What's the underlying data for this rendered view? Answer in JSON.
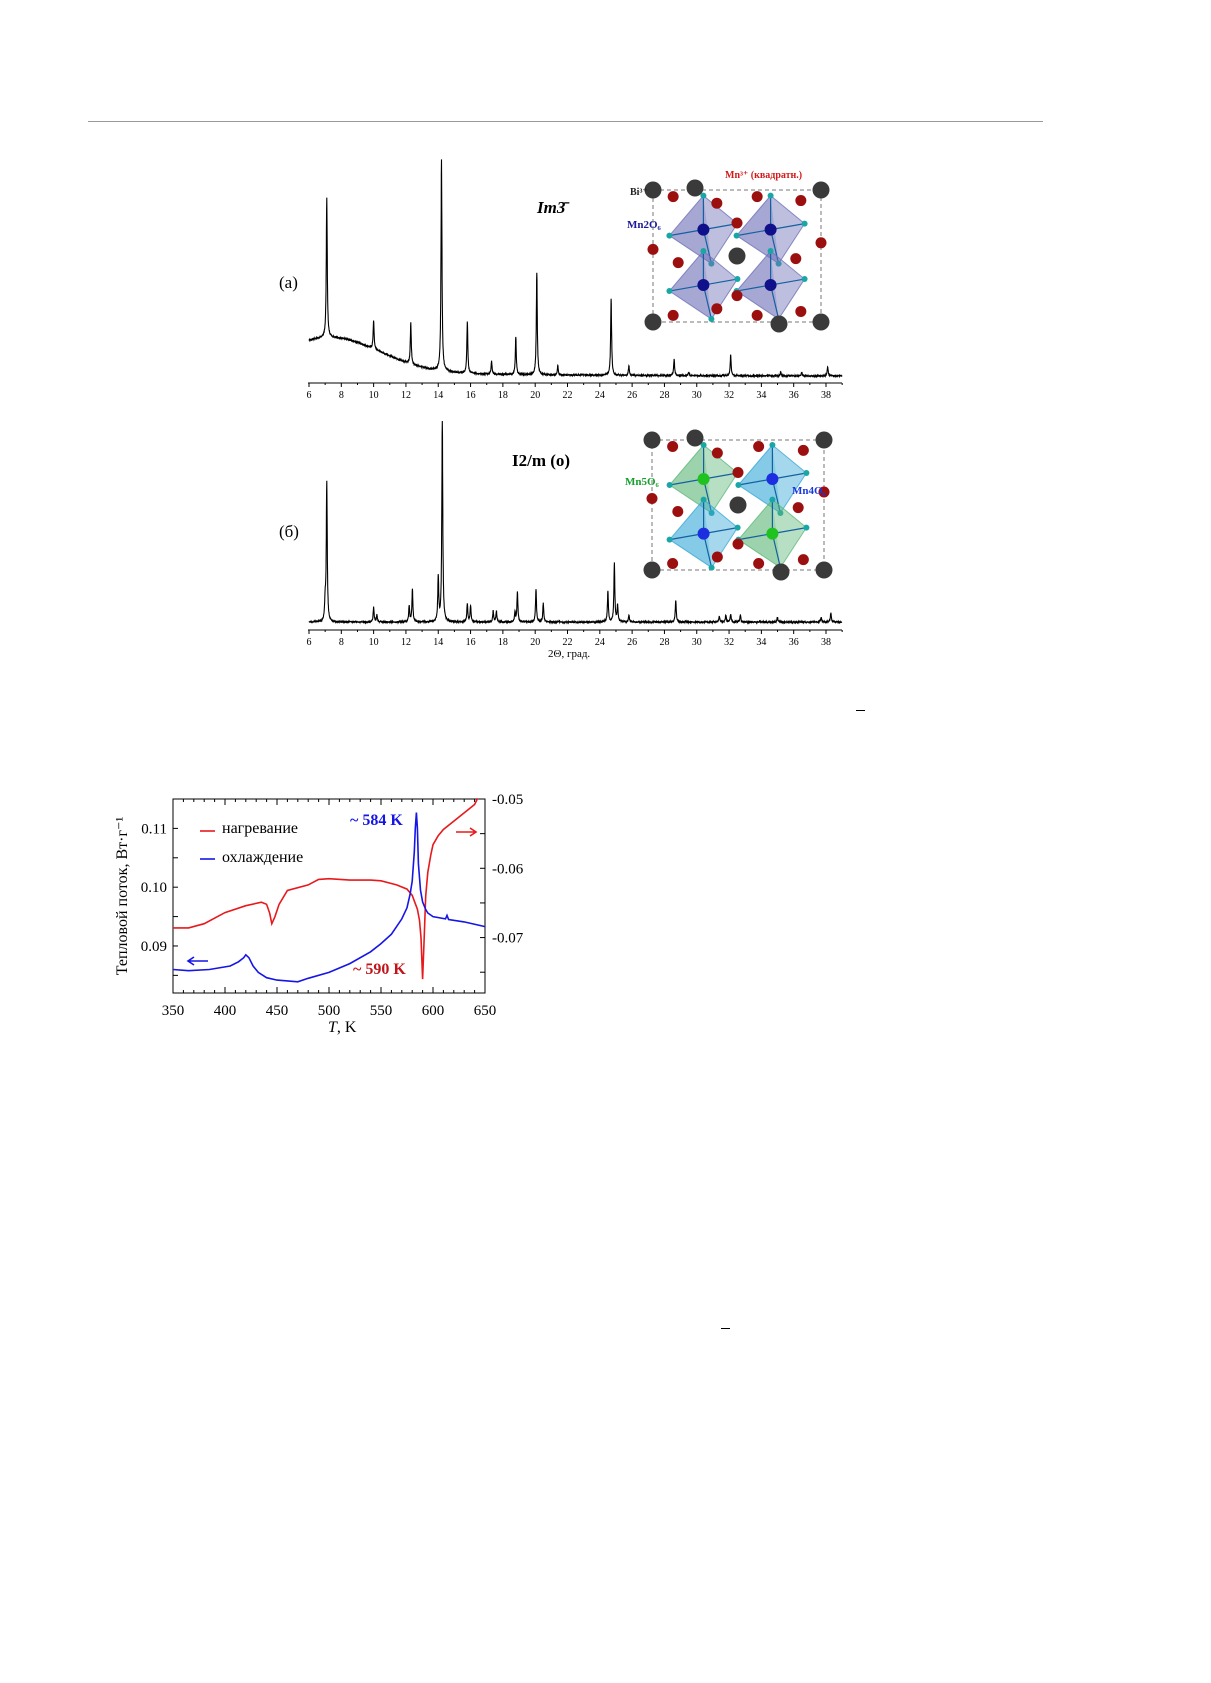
{
  "figure_xrd": {
    "panels": [
      {
        "label": "(a)",
        "space_group": "Im3̄",
        "sg_italic": "Im",
        "sg_rest": "3̄",
        "structure_labels": {
          "bi": "Bi³⁺",
          "mn_square": "Mn³⁺ (квадратн.)",
          "poly1": "Mn2O₆"
        }
      },
      {
        "label": "(б)",
        "space_group": "I2/m (o)",
        "sg_italic1": "I",
        "sg_mid": "2/",
        "sg_italic2": "m",
        "sg_rest": " (o)",
        "structure_labels": {
          "poly1": "Mn5O₆",
          "poly2": "Mn4O₆"
        }
      }
    ],
    "xlabel": "2Θ, град."
  },
  "chart_data": [
    {
      "type": "line",
      "title": "",
      "xlabel": "2Θ, град.",
      "ylabel": "",
      "xlim": [
        6,
        39
      ],
      "xticks": [
        6,
        8,
        10,
        12,
        14,
        16,
        18,
        20,
        22,
        24,
        26,
        28,
        30,
        32,
        34,
        36,
        38
      ],
      "series": [
        {
          "name": "(a) Im3̄",
          "peaks_2theta": [
            7.1,
            10.0,
            12.3,
            14.2,
            15.8,
            17.3,
            18.8,
            20.1,
            21.4,
            24.7,
            25.8,
            28.6,
            29.5,
            32.1,
            35.2,
            36.5,
            38.1
          ],
          "peak_intensity_au": [
            60,
            12.4,
            17.6,
            91,
            22,
            5.6,
            16,
            44,
            4,
            33,
            4,
            7,
            1.5,
            9,
            1.5,
            1.5,
            4
          ]
        }
      ]
    },
    {
      "type": "line",
      "xlabel": "2Θ, град.",
      "xlim": [
        6,
        39
      ],
      "xticks": [
        6,
        8,
        10,
        12,
        14,
        16,
        18,
        20,
        22,
        24,
        26,
        28,
        30,
        32,
        34,
        36,
        38
      ],
      "series": [
        {
          "name": "(б) I2/m (o)",
          "peaks_2theta": [
            7.0,
            7.1,
            10.0,
            10.2,
            12.2,
            12.4,
            14.0,
            14.25,
            15.8,
            16.0,
            17.4,
            17.6,
            18.75,
            18.9,
            20.05,
            20.5,
            24.5,
            24.9,
            25.1,
            25.8,
            28.7,
            31.4,
            31.8,
            32.1,
            32.7,
            35.0,
            37.7,
            38.3
          ],
          "peak_intensity_au": [
            8,
            60,
            6.4,
            3,
            7,
            14,
            19,
            86,
            8,
            7,
            4.7,
            4.7,
            4,
            13,
            14,
            8,
            13,
            25,
            7,
            3,
            9.4,
            2.5,
            3,
            3.4,
            3,
            2,
            2,
            4
          ]
        }
      ]
    },
    {
      "type": "line",
      "xlabel_italic": "T",
      "xlabel_rest": ", K",
      "ylabel": "Тепловой поток, Вт·г⁻¹",
      "xlim": [
        350,
        650
      ],
      "ylim_left": [
        0.082,
        0.115
      ],
      "ylim_right": [
        -0.078,
        -0.05
      ],
      "xticks": [
        350,
        400,
        450,
        500,
        550,
        600,
        650
      ],
      "yticks_left": [
        "0.09",
        "0.10",
        "0.11"
      ],
      "yticks_right": [
        "-0.07",
        "-0.06",
        "-0.05"
      ],
      "series": [
        {
          "name": "нагревание",
          "color": "#e8191c",
          "axis": "right",
          "x": [
            350,
            365,
            380,
            400,
            420,
            435,
            440,
            443,
            445,
            448,
            452,
            460,
            480,
            490,
            500,
            520,
            540,
            550,
            565,
            575,
            580,
            585,
            587,
            588.5,
            590,
            591.5,
            593,
            595,
            598,
            600,
            605,
            610,
            625,
            640,
            643
          ],
          "y": [
            -0.0686,
            -0.0686,
            -0.068,
            -0.0664,
            -0.0654,
            -0.0649,
            -0.0652,
            -0.0665,
            -0.068,
            -0.067,
            -0.0652,
            -0.0632,
            -0.0624,
            -0.0616,
            -0.0615,
            -0.0617,
            -0.0617,
            -0.0618,
            -0.0624,
            -0.063,
            -0.0639,
            -0.0659,
            -0.0675,
            -0.07,
            -0.076,
            -0.07,
            -0.064,
            -0.0606,
            -0.058,
            -0.0566,
            -0.0553,
            -0.0544,
            -0.0526,
            -0.0508,
            -0.0499
          ]
        },
        {
          "name": "охлаждение",
          "color": "#1515e6",
          "axis": "left",
          "x": [
            350,
            365,
            385,
            405,
            413,
            418,
            420,
            423,
            427,
            432,
            440,
            450,
            470,
            480,
            500,
            520,
            540,
            550,
            560,
            570,
            575,
            578,
            580,
            582,
            583,
            584,
            585,
            586,
            588,
            590,
            593,
            595,
            600,
            612,
            613.5,
            615,
            630,
            650
          ],
          "y": [
            0.086,
            0.0858,
            0.086,
            0.0866,
            0.0873,
            0.088,
            0.0885,
            0.088,
            0.0866,
            0.0855,
            0.0846,
            0.0842,
            0.0839,
            0.0845,
            0.0855,
            0.087,
            0.089,
            0.0904,
            0.092,
            0.0946,
            0.0965,
            0.0988,
            0.101,
            0.106,
            0.11,
            0.1127,
            0.11,
            0.104,
            0.0995,
            0.0975,
            0.0962,
            0.0956,
            0.095,
            0.0946,
            0.0952,
            0.0945,
            0.0941,
            0.0933
          ]
        }
      ],
      "annotations": [
        {
          "text": "~ 584 K",
          "color": "#1515e6"
        },
        {
          "text": "~ 590 K",
          "color": "#c0141a"
        }
      ]
    }
  ],
  "structure_colors": {
    "bi": "#3a3a3a",
    "mn_square": "#9b0f0f",
    "mn2": "#10108a",
    "oxygen": "#1aa6a6",
    "poly_a": "#6f72b8",
    "poly_b_green": "#5fb87a",
    "poly_b_blue": "#39a9d6",
    "mn5": "#1fc21f",
    "mn4": "#1c2ee0",
    "label_red": "#d21a1a",
    "label_blue": "#1a1a9a",
    "label_green": "#17a02d",
    "label_blue2": "#1b38e0"
  }
}
